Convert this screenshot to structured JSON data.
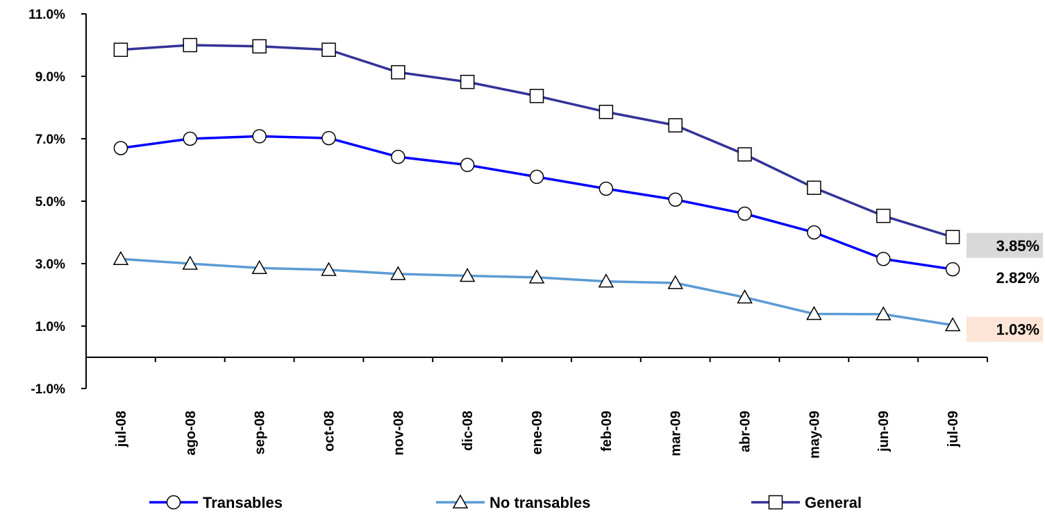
{
  "chart_data": {
    "type": "line",
    "categories": [
      "jul-08",
      "ago-08",
      "sep-08",
      "oct-08",
      "nov-08",
      "dic-08",
      "ene-09",
      "feb-09",
      "mar-09",
      "abr-09",
      "may-09",
      "jun-09",
      "jul-09"
    ],
    "ylim": [
      -1.0,
      11.0
    ],
    "yticks": [
      -1.0,
      1.0,
      3.0,
      5.0,
      7.0,
      9.0,
      11.0
    ],
    "ytick_labels": [
      "-1.0%",
      "1.0%",
      "3.0%",
      "5.0%",
      "7.0%",
      "9.0%",
      "11.0%"
    ],
    "grid": false,
    "legend_position": "bottom",
    "series": [
      {
        "name": "Transables",
        "color": "#0000FF",
        "marker": "circle",
        "values": [
          6.7,
          7.0,
          7.08,
          7.02,
          6.42,
          6.16,
          5.78,
          5.4,
          5.05,
          4.6,
          4.0,
          3.15,
          2.82
        ]
      },
      {
        "name": "No transables",
        "color": "#5B9BD5",
        "marker": "triangle",
        "values": [
          3.15,
          3.0,
          2.86,
          2.8,
          2.67,
          2.61,
          2.56,
          2.43,
          2.38,
          1.92,
          1.39,
          1.38,
          1.03
        ]
      },
      {
        "name": "General",
        "color": "#333399",
        "marker": "square",
        "values": [
          9.85,
          10.0,
          9.96,
          9.85,
          9.13,
          8.82,
          8.37,
          7.86,
          7.43,
          6.5,
          5.43,
          4.53,
          3.85
        ]
      }
    ],
    "end_labels": [
      {
        "text": "3.85%",
        "bg": "#D9D9D9"
      },
      {
        "text": "2.82%",
        "bg": "none"
      },
      {
        "text": "1.03%",
        "bg": "#FCE4D6"
      }
    ]
  }
}
